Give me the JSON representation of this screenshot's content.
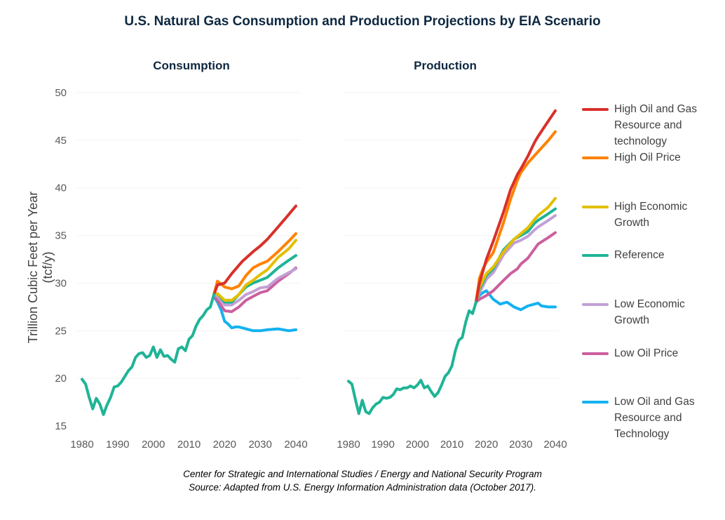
{
  "chart_data": [
    {
      "type": "line",
      "title": "Consumption",
      "suptitle": "U.S. Natural Gas Consumption and Production Projections by EIA Scenario",
      "ylabel": "Trillion Cubic Feet per Year (tcf/y)",
      "xlim": [
        1980,
        2040
      ],
      "ylim": [
        15,
        50
      ],
      "xticks": [
        "1980",
        "1990",
        "2000",
        "2010",
        "2020",
        "2030",
        "2040"
      ],
      "yticks": [
        "15",
        "20",
        "25",
        "30",
        "35",
        "40",
        "45",
        "50"
      ],
      "grid": true,
      "history": {
        "x": [
          1980,
          1981,
          1982,
          1983,
          1984,
          1985,
          1986,
          1987,
          1988,
          1989,
          1990,
          1991,
          1992,
          1993,
          1994,
          1995,
          1996,
          1997,
          1998,
          1999,
          2000,
          2001,
          2002,
          2003,
          2004,
          2005,
          2006,
          2007,
          2008,
          2009,
          2010,
          2011,
          2012,
          2013,
          2014,
          2015,
          2016,
          2017
        ],
        "y": [
          19.9,
          19.4,
          18.0,
          16.8,
          17.9,
          17.3,
          16.2,
          17.2,
          18.0,
          19.1,
          19.2,
          19.6,
          20.2,
          20.8,
          21.2,
          22.2,
          22.6,
          22.7,
          22.2,
          22.4,
          23.3,
          22.2,
          23.0,
          22.3,
          22.4,
          22.0,
          21.7,
          23.1,
          23.3,
          22.9,
          24.1,
          24.5,
          25.5,
          26.2,
          26.6,
          27.2,
          27.5,
          28.8
        ]
      },
      "series": [
        {
          "name": "High Oil and Gas Resource and technology",
          "x": [
            2017,
            2018,
            2020,
            2022,
            2025,
            2028,
            2030,
            2032,
            2035,
            2038,
            2040
          ],
          "y": [
            28.8,
            29.8,
            30.0,
            31.0,
            32.3,
            33.3,
            33.9,
            34.6,
            35.9,
            37.2,
            38.1
          ]
        },
        {
          "name": "High Oil Price",
          "x": [
            2017,
            2018,
            2020,
            2022,
            2024,
            2026,
            2028,
            2030,
            2032,
            2035,
            2038,
            2040
          ],
          "y": [
            28.8,
            30.2,
            29.6,
            29.4,
            29.7,
            30.8,
            31.6,
            32.0,
            32.3,
            33.3,
            34.4,
            35.2
          ]
        },
        {
          "name": "High Economic Growth",
          "x": [
            2017,
            2018,
            2020,
            2022,
            2024,
            2026,
            2028,
            2030,
            2032,
            2035,
            2038,
            2040
          ],
          "y": [
            28.8,
            28.9,
            28.2,
            28.2,
            28.8,
            29.8,
            30.3,
            30.9,
            31.4,
            32.7,
            33.6,
            34.5
          ]
        },
        {
          "name": "Reference",
          "x": [
            2017,
            2018,
            2020,
            2022,
            2024,
            2026,
            2028,
            2030,
            2032,
            2035,
            2038,
            2040
          ],
          "y": [
            28.8,
            28.9,
            28.0,
            28.0,
            28.8,
            29.6,
            30.0,
            30.3,
            30.6,
            31.6,
            32.4,
            32.9
          ]
        },
        {
          "name": "Low Economic Growth",
          "x": [
            2017,
            2018,
            2020,
            2022,
            2024,
            2026,
            2028,
            2030,
            2032,
            2035,
            2038,
            2040
          ],
          "y": [
            28.8,
            28.6,
            27.7,
            27.7,
            28.2,
            28.8,
            29.1,
            29.5,
            29.6,
            30.5,
            31.1,
            31.5
          ]
        },
        {
          "name": "Low Oil Price",
          "x": [
            2017,
            2018,
            2020,
            2022,
            2024,
            2026,
            2028,
            2030,
            2032,
            2035,
            2038,
            2040
          ],
          "y": [
            28.7,
            28.2,
            27.1,
            27.0,
            27.5,
            28.2,
            28.6,
            29.0,
            29.2,
            30.2,
            31.0,
            31.6
          ]
        },
        {
          "name": "Low Oil and Gas Resource and Technology",
          "x": [
            2017,
            2018,
            2019,
            2020,
            2021,
            2022,
            2023,
            2024,
            2026,
            2028,
            2030,
            2032,
            2035,
            2038,
            2040
          ],
          "y": [
            28.6,
            28.0,
            27.2,
            26.0,
            25.7,
            25.3,
            25.4,
            25.4,
            25.2,
            25.0,
            25.0,
            25.1,
            25.2,
            25.0,
            25.1
          ]
        }
      ]
    },
    {
      "type": "line",
      "title": "Production",
      "xlim": [
        1980,
        2040
      ],
      "ylim": [
        15,
        50
      ],
      "xticks": [
        "1980",
        "1990",
        "2000",
        "2010",
        "2020",
        "2030",
        "2040"
      ],
      "grid": true,
      "history": {
        "x": [
          1980,
          1981,
          1982,
          1983,
          1984,
          1985,
          1986,
          1987,
          1988,
          1989,
          1990,
          1991,
          1992,
          1993,
          1994,
          1995,
          1996,
          1997,
          1998,
          1999,
          2000,
          2001,
          2002,
          2003,
          2004,
          2005,
          2006,
          2007,
          2008,
          2009,
          2010,
          2011,
          2012,
          2013,
          2014,
          2015,
          2016,
          2017
        ],
        "y": [
          19.7,
          19.4,
          17.8,
          16.3,
          17.7,
          16.5,
          16.3,
          16.9,
          17.3,
          17.5,
          18.0,
          17.9,
          18.0,
          18.3,
          18.9,
          18.8,
          19.0,
          19.0,
          19.2,
          19.0,
          19.3,
          19.8,
          19.0,
          19.2,
          18.6,
          18.1,
          18.5,
          19.3,
          20.2,
          20.6,
          21.3,
          22.9,
          24.0,
          24.3,
          25.9,
          27.1,
          26.8,
          28.0
        ]
      },
      "series": [
        {
          "name": "High Oil and Gas Resource and technology",
          "x": [
            2017,
            2018,
            2020,
            2022,
            2025,
            2027,
            2029,
            2030,
            2032,
            2034,
            2035,
            2037,
            2040
          ],
          "y": [
            28.0,
            30.0,
            32.5,
            34.4,
            37.5,
            39.8,
            41.4,
            42.0,
            43.3,
            44.8,
            45.4,
            46.5,
            48.1
          ]
        },
        {
          "name": "High Oil Price",
          "x": [
            2017,
            2018,
            2019,
            2020,
            2022,
            2025,
            2027,
            2029,
            2030,
            2032,
            2035,
            2038,
            2040
          ],
          "y": [
            28.0,
            30.5,
            31.5,
            32.2,
            33.2,
            36.4,
            38.8,
            40.8,
            41.6,
            42.6,
            43.8,
            45.0,
            45.9
          ]
        },
        {
          "name": "High Economic Growth",
          "x": [
            2017,
            2018,
            2020,
            2022,
            2025,
            2028,
            2030,
            2032,
            2034,
            2035,
            2038,
            2040
          ],
          "y": [
            28.0,
            29.6,
            31.0,
            31.7,
            33.3,
            34.6,
            35.2,
            35.8,
            36.7,
            37.1,
            38.0,
            38.9
          ]
        },
        {
          "name": "Reference",
          "x": [
            2017,
            2018,
            2020,
            2022,
            2025,
            2028,
            2030,
            2032,
            2034,
            2035,
            2038,
            2040
          ],
          "y": [
            28.0,
            29.4,
            30.8,
            31.5,
            33.5,
            34.6,
            35.0,
            35.4,
            36.3,
            36.6,
            37.3,
            37.8
          ]
        },
        {
          "name": "Low Economic Growth",
          "x": [
            2017,
            2018,
            2020,
            2022,
            2025,
            2028,
            2030,
            2032,
            2034,
            2035,
            2038,
            2040
          ],
          "y": [
            28.0,
            29.0,
            30.4,
            31.1,
            33.0,
            34.2,
            34.5,
            34.9,
            35.6,
            35.9,
            36.6,
            37.1
          ]
        },
        {
          "name": "Low Oil Price",
          "x": [
            2017,
            2018,
            2020,
            2022,
            2025,
            2027,
            2029,
            2030,
            2032,
            2035,
            2038,
            2040
          ],
          "y": [
            28.0,
            28.3,
            28.7,
            29.2,
            30.3,
            31.0,
            31.5,
            32.0,
            32.6,
            34.1,
            34.8,
            35.3
          ]
        },
        {
          "name": "Low Oil and Gas Resource and Technology",
          "x": [
            2017,
            2018,
            2019,
            2020,
            2022,
            2024,
            2026,
            2028,
            2030,
            2032,
            2034,
            2035,
            2036,
            2038,
            2040
          ],
          "y": [
            28.0,
            28.7,
            29.0,
            29.2,
            28.3,
            27.8,
            28.0,
            27.5,
            27.2,
            27.6,
            27.8,
            27.9,
            27.6,
            27.5,
            27.5
          ]
        }
      ]
    }
  ],
  "colors": {
    "history": "#1fb496",
    "High Oil and Gas Resource and technology": "#d9302a",
    "High Oil Price": "#ff8200",
    "High Economic Growth": "#e3bf00",
    "Reference": "#1fb496",
    "Low Economic Growth": "#c29fd6",
    "Low Oil Price": "#cc5f9e",
    "Low Oil and Gas Resource and Technology": "#13b2f0"
  },
  "legend": [
    "High Oil and Gas Resource and technology",
    "High Oil Price",
    "High Economic Growth",
    "Reference",
    "Low Economic Growth",
    "Low Oil Price",
    "Low Oil and Gas Resource and Technology"
  ],
  "footer": {
    "line1": "Center for Strategic and International Studies / Energy and National Security Program",
    "line2": "Source: Adapted from U.S. Energy Information Administration data (October 2017)."
  }
}
